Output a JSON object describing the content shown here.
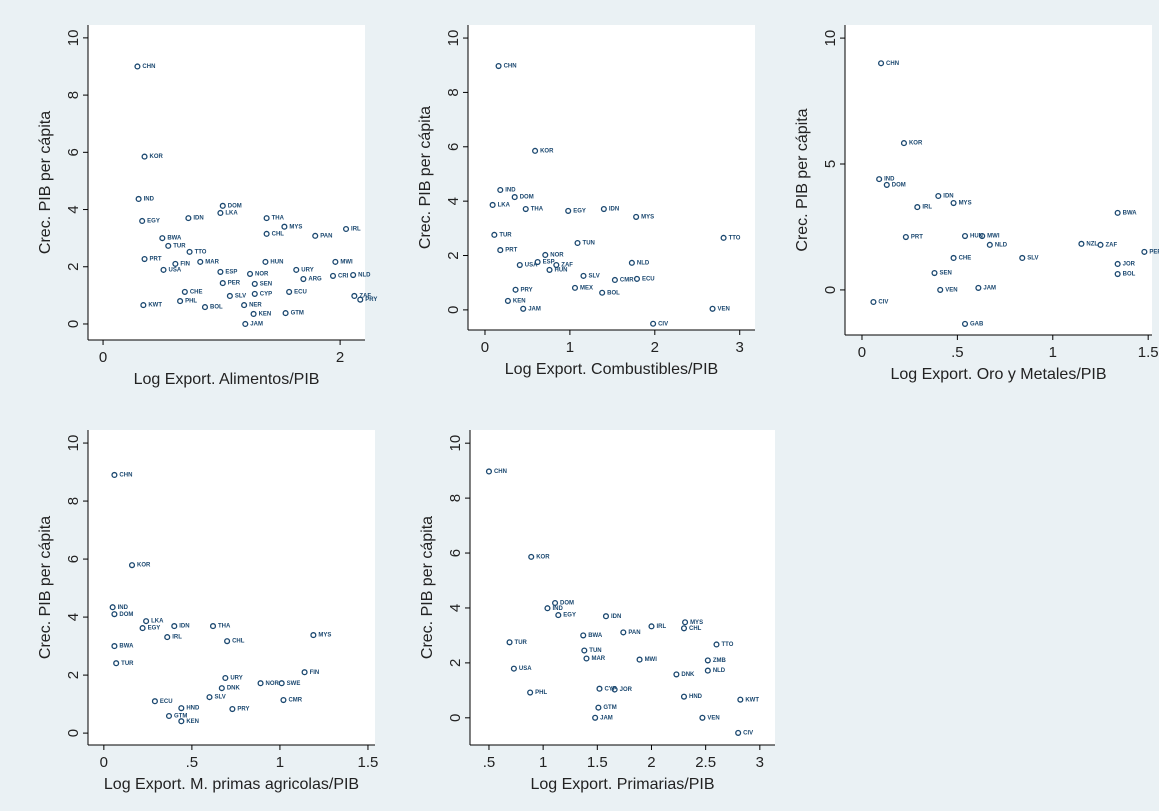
{
  "chart_data": [
    {
      "type": "scatter",
      "xlabel": "Log Export. Alimentos/PIB",
      "ylabel": "Crec. PIB per cápita",
      "color": "#1a476f",
      "xlim": [
        -0.127,
        2.21
      ],
      "ylim": [
        -0.56,
        10.45
      ],
      "xticks": [
        0,
        2
      ],
      "yticks": [
        0,
        2,
        4,
        6,
        8,
        10
      ],
      "labels": [
        "CHN",
        "KOR",
        "IND",
        "EGY",
        "IDN",
        "DOM",
        "LKA",
        "THA",
        "MYS",
        "CHL",
        "PAN",
        "IRL",
        "BWA",
        "TUR",
        "TTO",
        "PRT",
        "FIN",
        "MAR",
        "HUN",
        "MWI",
        "USA",
        "ESP",
        "NOR",
        "URY",
        "ARG",
        "CRI",
        "NLD",
        "SEN",
        "PER",
        "CYP",
        "ECU",
        "CHE",
        "SLV",
        "ZAF",
        "PRY",
        "NER",
        "BOL",
        "KEN",
        "GTM",
        "JAM",
        "KWT",
        "PHL"
      ],
      "x": [
        0.29,
        0.35,
        0.3,
        0.33,
        0.72,
        1.01,
        0.99,
        1.38,
        1.53,
        1.38,
        1.79,
        2.05,
        0.5,
        0.55,
        0.73,
        0.35,
        0.61,
        0.82,
        1.37,
        1.96,
        0.51,
        0.99,
        1.24,
        1.63,
        1.69,
        1.94,
        2.11,
        1.28,
        1.01,
        1.28,
        1.57,
        0.69,
        1.07,
        2.12,
        2.17,
        1.19,
        0.86,
        1.27,
        1.54,
        1.2,
        0.34,
        0.65
      ],
      "values": [
        9.0,
        5.85,
        4.37,
        3.6,
        3.7,
        4.13,
        3.88,
        3.7,
        3.4,
        3.15,
        3.08,
        3.32,
        3.0,
        2.73,
        2.52,
        2.27,
        2.1,
        2.17,
        2.17,
        2.17,
        1.89,
        1.82,
        1.75,
        1.89,
        1.57,
        1.68,
        1.71,
        1.4,
        1.43,
        1.05,
        1.12,
        1.12,
        0.98,
        0.98,
        0.85,
        0.66,
        0.59,
        0.35,
        0.38,
        0.0,
        0.66,
        0.8
      ]
    },
    {
      "type": "scatter",
      "xlabel": "Log Export. Combustibles/PIB",
      "ylabel": "Crec. PIB per cápita",
      "color": "#1a476f",
      "xlim": [
        -0.2,
        3.18
      ],
      "ylim": [
        -0.74,
        10.48
      ],
      "xticks": [
        0,
        1,
        2,
        3
      ],
      "yticks": [
        0,
        2,
        4,
        6,
        8,
        10
      ],
      "labels": [
        "CHN",
        "KOR",
        "IND",
        "DOM",
        "LKA",
        "THA",
        "EGY",
        "IDN",
        "MYS",
        "TTO",
        "TUR",
        "TUN",
        "PRT",
        "NLD",
        "ECU",
        "CMR",
        "SLV",
        "MEX",
        "BOL",
        "VEN",
        "CIV",
        "JAM",
        "KEN",
        "PRY",
        "ZAF",
        "HUN",
        "USA",
        "ESP",
        "NOR"
      ],
      "x": [
        0.16,
        0.59,
        0.18,
        0.35,
        0.09,
        0.48,
        0.98,
        1.4,
        1.78,
        2.81,
        0.11,
        1.09,
        0.18,
        1.73,
        1.79,
        1.53,
        1.16,
        1.06,
        1.38,
        2.68,
        1.98,
        0.45,
        0.27,
        0.36,
        0.84,
        0.76,
        0.41,
        0.62,
        0.71
      ],
      "values": [
        8.97,
        5.85,
        4.41,
        4.15,
        3.86,
        3.71,
        3.64,
        3.71,
        3.42,
        2.65,
        2.76,
        2.46,
        2.2,
        1.73,
        1.14,
        1.1,
        1.25,
        0.81,
        0.63,
        0.04,
        -0.51,
        0.04,
        0.33,
        0.74,
        1.65,
        1.47,
        1.65,
        1.76,
        2.02
      ]
    },
    {
      "type": "scatter",
      "xlabel": "Log Export. Oro y Metales/PIB",
      "ylabel": "Crec. PIB per cápita",
      "color": "#1a476f",
      "xlim": [
        -0.089,
        1.52
      ],
      "ylim": [
        -1.79,
        10.52
      ],
      "xticks": [
        0,
        {
          "value": 0.5,
          "label": ".5"
        },
        1,
        1.5
      ],
      "yticks": [
        0,
        5,
        10
      ],
      "labels": [
        "CHN",
        "KOR",
        "IND",
        "DOM",
        "IDN",
        "MYS",
        "IRL",
        "BWA",
        "HUN",
        "MWI",
        "CHE",
        "NLD",
        "NZL",
        "ZAF",
        "PER",
        "JOR",
        "BOL",
        "SLV",
        "VEN",
        "JAM",
        "GAB",
        "CIV",
        "SEN",
        "PRT"
      ],
      "x": [
        0.1,
        0.22,
        0.09,
        0.13,
        0.4,
        0.48,
        0.29,
        1.34,
        0.54,
        0.63,
        0.48,
        0.67,
        1.15,
        1.25,
        1.48,
        1.34,
        1.34,
        0.84,
        0.41,
        0.61,
        0.54,
        0.06,
        0.38,
        0.23
      ],
      "values": [
        9.0,
        5.83,
        4.4,
        4.17,
        3.73,
        3.45,
        3.29,
        3.06,
        2.14,
        2.14,
        1.27,
        1.79,
        1.83,
        1.79,
        1.51,
        1.03,
        0.63,
        1.27,
        0.0,
        0.08,
        -1.35,
        -0.48,
        0.67,
        2.1
      ]
    },
    {
      "type": "scatter",
      "xlabel": "Log Export. M. primas agricolas/PIB",
      "ylabel": "Crec. PIB per cápita",
      "color": "#1a476f",
      "xlim": [
        -0.09,
        1.54
      ],
      "ylim": [
        -0.41,
        10.45
      ],
      "xticks": [
        0,
        {
          "value": 0.5,
          "label": ".5"
        },
        1,
        1.5
      ],
      "yticks": [
        0,
        2,
        4,
        6,
        8,
        10
      ],
      "labels": [
        "CHN",
        "KOR",
        "IND",
        "DOM",
        "LKA",
        "EGY",
        "IDN",
        "THA",
        "IRL",
        "CHL",
        "MYS",
        "BWA",
        "TUR",
        "FIN",
        "URY",
        "DNK",
        "NOR",
        "SWE",
        "SLV",
        "ECU",
        "CMR",
        "HND",
        "PRY",
        "GTM",
        "KEN"
      ],
      "x": [
        0.06,
        0.16,
        0.05,
        0.06,
        0.24,
        0.22,
        0.4,
        0.62,
        0.36,
        0.7,
        1.19,
        0.06,
        0.07,
        1.14,
        0.69,
        0.67,
        0.89,
        1.01,
        0.6,
        0.29,
        1.02,
        0.44,
        0.73,
        0.37,
        0.44
      ],
      "values": [
        8.9,
        5.79,
        4.34,
        4.1,
        3.86,
        3.62,
        3.69,
        3.69,
        3.31,
        3.17,
        3.38,
        3.0,
        2.41,
        2.1,
        1.9,
        1.55,
        1.72,
        1.72,
        1.24,
        1.1,
        1.14,
        0.86,
        0.83,
        0.59,
        0.41
      ]
    },
    {
      "type": "scatter",
      "xlabel": "Log Export. Primarias/PIB",
      "ylabel": "Crec. PIB per cápita",
      "color": "#1a476f",
      "xlim": [
        0.325,
        3.14
      ],
      "ylim": [
        -0.99,
        10.48
      ],
      "xticks": [
        {
          "value": 0.5,
          "label": ".5"
        },
        1,
        1.5,
        2,
        2.5,
        3
      ],
      "yticks": [
        0,
        2,
        4,
        6,
        8,
        10
      ],
      "labels": [
        "CHN",
        "KOR",
        "DOM",
        "IND",
        "EGY",
        "IDN",
        "MYS",
        "CHL",
        "IRL",
        "PAN",
        "BWA",
        "TUR",
        "TTO",
        "TUN",
        "ZMB",
        "MWI",
        "MAR",
        "NLD",
        "DNK",
        "USA",
        "CYP",
        "JOR",
        "PHL",
        "KWT",
        "HND",
        "GTM",
        "JAM",
        "VEN",
        "CIV"
      ],
      "x": [
        0.5,
        0.89,
        1.11,
        1.04,
        1.14,
        1.58,
        2.31,
        2.3,
        2.0,
        1.74,
        1.37,
        0.69,
        2.6,
        1.38,
        2.52,
        1.89,
        1.4,
        2.52,
        2.23,
        0.73,
        1.52,
        1.66,
        0.88,
        2.82,
        2.3,
        1.51,
        1.48,
        2.47,
        2.8
      ],
      "values": [
        8.97,
        5.86,
        4.18,
        3.99,
        3.74,
        3.7,
        3.48,
        3.26,
        3.33,
        3.11,
        3.0,
        2.75,
        2.67,
        2.45,
        2.09,
        2.12,
        2.16,
        1.72,
        1.58,
        1.79,
        1.06,
        1.03,
        0.92,
        0.66,
        0.77,
        0.37,
        0.0,
        0.0,
        -0.55
      ]
    }
  ]
}
